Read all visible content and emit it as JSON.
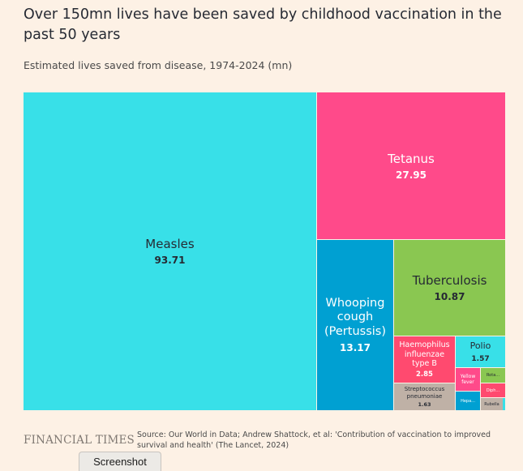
{
  "chart_data": {
    "type": "treemap",
    "title": "Over 150mn lives have been saved by childhood vaccination in the past 50 years",
    "subtitle": "Estimated lives saved from disease, 1974-2024 (mn)",
    "items": [
      {
        "name": "Measles",
        "value": 93.71,
        "display": "93.71",
        "color": "#38e0e8",
        "text_color": "#262a33"
      },
      {
        "name": "Tetanus",
        "value": 27.95,
        "display": "27.95",
        "color": "#ff4a8a",
        "text_color": "#ffffff"
      },
      {
        "name": "Whooping cough (Pertussis)",
        "lines": [
          "Whooping",
          "cough",
          "(Pertussis)"
        ],
        "value": 13.17,
        "display": "13.17",
        "color": "#00a0d2",
        "text_color": "#ffffff"
      },
      {
        "name": "Tuberculosis",
        "value": 10.87,
        "display": "10.87",
        "color": "#8ac751",
        "text_color": "#262a33"
      },
      {
        "name": "Haemophilus influenzae type B",
        "lines": [
          "Haemophilus",
          "influenzae",
          "type B"
        ],
        "value": 2.85,
        "display": "2.85",
        "color": "#ff4a6f",
        "text_color": "#ffffff"
      },
      {
        "name": "Polio",
        "value": 1.57,
        "display": "1.57",
        "color": "#38e0e8",
        "text_color": "#262a33"
      },
      {
        "name": "Streptococcus pneumoniae",
        "lines": [
          "Streptococcus",
          "pneumoniae"
        ],
        "value": 1.63,
        "display": "1.63",
        "color": "#bfb1a6",
        "text_color": "#262a33"
      },
      {
        "name": "Yellow fever",
        "lines": [
          "Yellow",
          "fever"
        ],
        "value": 0.7,
        "display": "",
        "color": "#ff4a8a",
        "text_color": "#ffffff"
      },
      {
        "name": "Hepa...",
        "lines": [
          "Hepa..."
        ],
        "value": 0.5,
        "display": "",
        "color": "#00a0d2",
        "text_color": "#ffffff"
      },
      {
        "name": "Rota...",
        "lines": [
          "Rota..."
        ],
        "value": 0.4,
        "display": "",
        "color": "#8ac751",
        "text_color": "#262a33"
      },
      {
        "name": "Diph...",
        "lines": [
          "Diph..."
        ],
        "value": 0.3,
        "display": "",
        "color": "#ff4a6f",
        "text_color": "#ffffff"
      },
      {
        "name": "Rubella",
        "lines": [
          "Rubella"
        ],
        "value": 0.25,
        "display": "",
        "color": "#bfb1a6",
        "text_color": "#262a33"
      },
      {
        "name": "",
        "lines": [],
        "value": 0.05,
        "display": "",
        "color": "#38e0e8",
        "text_color": "#262a33"
      }
    ]
  },
  "footer": {
    "logo": "FINANCIAL TIMES",
    "source": "Source: Our World in Data; Andrew Shattock, et al: 'Contribution of vaccination to improved survival and health' (The Lancet, 2024)"
  },
  "tab": {
    "label": "Screenshot"
  }
}
